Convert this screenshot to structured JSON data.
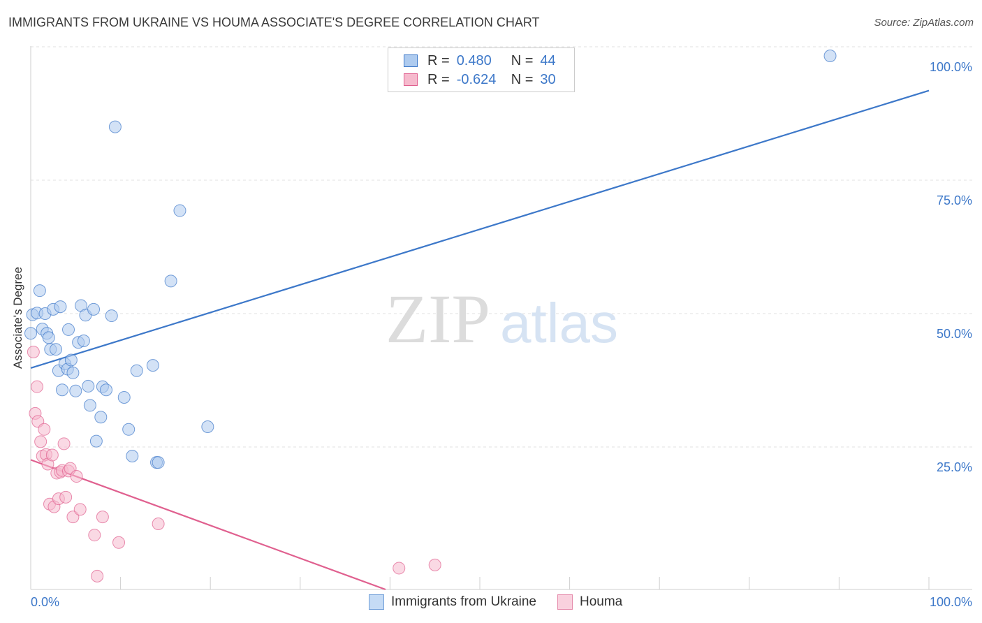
{
  "title": "IMMIGRANTS FROM UKRAINE VS HOUMA ASSOCIATE'S DEGREE CORRELATION CHART",
  "source": "Source: ZipAtlas.com",
  "watermark": {
    "zip": "ZIP",
    "atlas": "atlas"
  },
  "legend_top": {
    "rows": [
      {
        "r_label": "R =",
        "r_value": "0.480",
        "n_label": "N =",
        "n_value": "44"
      },
      {
        "r_label": "R =",
        "r_value": "-0.624",
        "n_label": "N =",
        "n_value": "30"
      }
    ]
  },
  "legend_bottom": {
    "series1": "Immigrants from Ukraine",
    "series2": "Houma"
  },
  "axis": {
    "ylabel": "Associate's Degree",
    "xmin_label": "0.0%",
    "xmax_label": "100.0%",
    "yticks": [
      "100.0%",
      "75.0%",
      "50.0%",
      "25.0%"
    ]
  },
  "colors": {
    "blue": "#3d78c9",
    "blue_fill": "#aecbef",
    "pink": "#e0608f",
    "pink_fill": "#f6bacd"
  },
  "chart_data": {
    "type": "scatter",
    "title": "IMMIGRANTS FROM UKRAINE VS HOUMA ASSOCIATE'S DEGREE CORRELATION CHART",
    "xlabel": "",
    "ylabel": "Associate's Degree",
    "xlim": [
      0,
      100
    ],
    "ylim": [
      0,
      100
    ],
    "series": [
      {
        "name": "Immigrants from Ukraine",
        "r": 0.48,
        "n": 44,
        "points": [
          [
            0.2,
            51.5
          ],
          [
            0.7,
            51.8
          ],
          [
            1.0,
            56
          ],
          [
            1.3,
            48.8
          ],
          [
            1.6,
            51.7
          ],
          [
            1.8,
            48
          ],
          [
            2.0,
            47.2
          ],
          [
            2.2,
            45
          ],
          [
            2.5,
            52.5
          ],
          [
            2.8,
            45
          ],
          [
            3.1,
            41
          ],
          [
            3.3,
            53
          ],
          [
            3.5,
            37.4
          ],
          [
            3.8,
            42.3
          ],
          [
            4.1,
            41.3
          ],
          [
            4.2,
            48.7
          ],
          [
            4.5,
            43
          ],
          [
            4.7,
            40.6
          ],
          [
            5.0,
            37.2
          ],
          [
            5.3,
            46.3
          ],
          [
            5.6,
            53.2
          ],
          [
            5.9,
            46.6
          ],
          [
            6.1,
            51.4
          ],
          [
            6.4,
            38.1
          ],
          [
            6.6,
            34.5
          ],
          [
            7.0,
            52.5
          ],
          [
            7.3,
            27.8
          ],
          [
            7.8,
            32.3
          ],
          [
            8.0,
            38
          ],
          [
            8.4,
            37.4
          ],
          [
            9.0,
            51.3
          ],
          [
            9.4,
            86.7
          ],
          [
            10.4,
            36
          ],
          [
            10.9,
            30
          ],
          [
            11.3,
            25
          ],
          [
            11.8,
            41
          ],
          [
            13.6,
            42
          ],
          [
            14.0,
            23.8
          ],
          [
            14.2,
            23.8
          ],
          [
            15.6,
            57.8
          ],
          [
            16.6,
            71
          ],
          [
            19.7,
            30.5
          ],
          [
            89.0,
            100
          ],
          [
            0.0,
            48
          ]
        ],
        "trend": [
          [
            0.0,
            41.5
          ],
          [
            100.0,
            93.5
          ]
        ]
      },
      {
        "name": "Houma",
        "r": -0.624,
        "n": 30,
        "points": [
          [
            0.3,
            44.5
          ],
          [
            0.5,
            33
          ],
          [
            0.7,
            38
          ],
          [
            0.8,
            31.5
          ],
          [
            1.1,
            27.7
          ],
          [
            1.3,
            25
          ],
          [
            1.5,
            30
          ],
          [
            1.7,
            25.3
          ],
          [
            1.9,
            23.5
          ],
          [
            2.1,
            16
          ],
          [
            2.4,
            25.2
          ],
          [
            2.6,
            15.5
          ],
          [
            2.9,
            21.8
          ],
          [
            3.1,
            17
          ],
          [
            3.3,
            22
          ],
          [
            3.5,
            22.3
          ],
          [
            3.7,
            27.3
          ],
          [
            3.9,
            17.3
          ],
          [
            4.2,
            22.2
          ],
          [
            4.4,
            22.7
          ],
          [
            4.7,
            13.6
          ],
          [
            5.1,
            21.2
          ],
          [
            5.5,
            15
          ],
          [
            7.1,
            10.2
          ],
          [
            7.4,
            2.5
          ],
          [
            8.0,
            13.6
          ],
          [
            9.8,
            8.8
          ],
          [
            14.2,
            12.3
          ],
          [
            41.0,
            4
          ],
          [
            45.0,
            4.6
          ]
        ],
        "trend": [
          [
            0.0,
            24.3
          ],
          [
            39.5,
            0.0
          ]
        ]
      }
    ]
  }
}
